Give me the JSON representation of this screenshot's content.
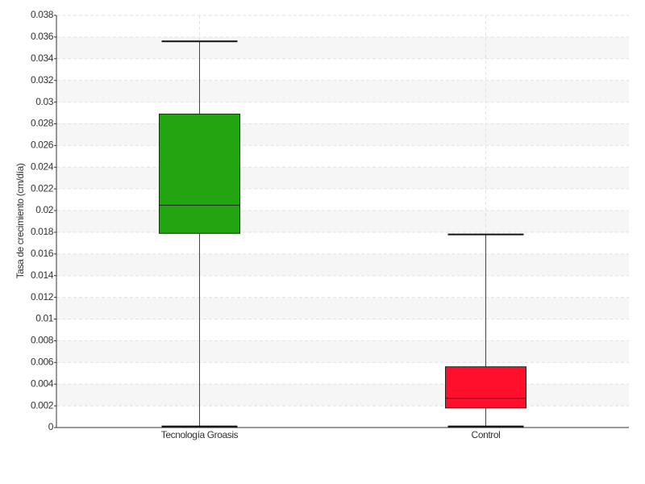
{
  "chart_data": {
    "type": "box",
    "y_label": "Tasa de crecimiento (cm/día)",
    "categories": [
      "Tecnología Groasis",
      "Control"
    ],
    "boxes": [
      {
        "min": 0.0001,
        "q1": 0.0179,
        "median": 0.0205,
        "q3": 0.0289,
        "max": 0.0356,
        "color": "#22a511"
      },
      {
        "min": 0.0001,
        "q1": 0.0018,
        "median": 0.0027,
        "q3": 0.0056,
        "max": 0.0178,
        "color": "#ff0f2b"
      }
    ],
    "ylim": [
      0,
      0.038
    ],
    "yticks": [
      0,
      0.002,
      0.004,
      0.006,
      0.008,
      0.01,
      0.012,
      0.014,
      0.016,
      0.018,
      0.02,
      0.022,
      0.024,
      0.026,
      0.028,
      0.03,
      0.032,
      0.034,
      0.036,
      0.038
    ],
    "grid": true
  }
}
